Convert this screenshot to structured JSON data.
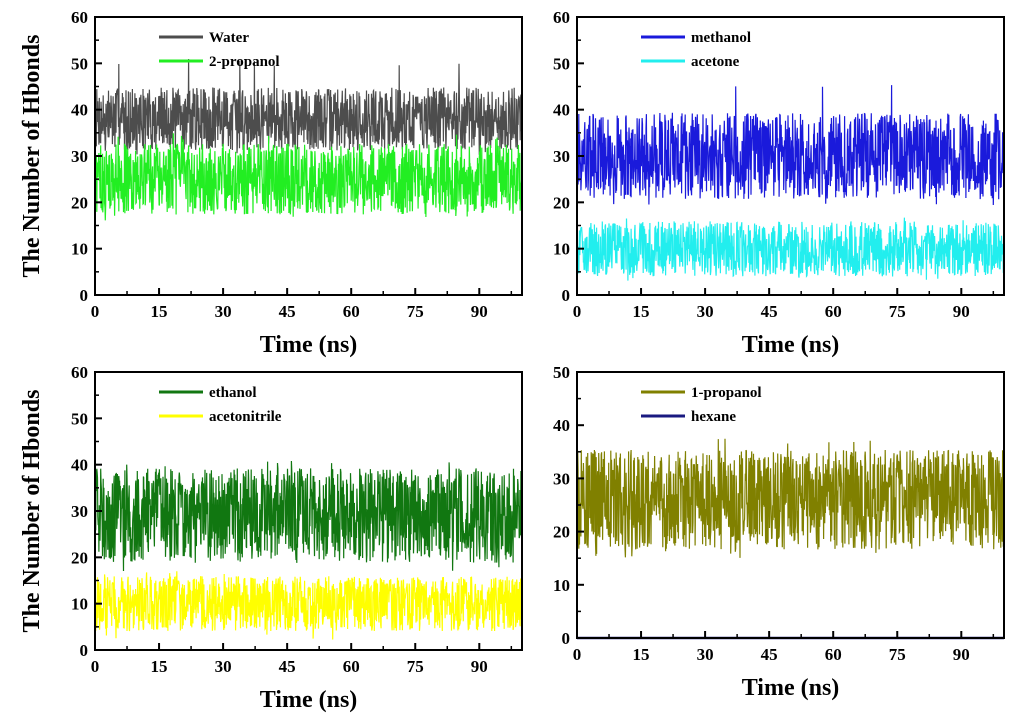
{
  "chart_data": [
    {
      "type": "line",
      "xlabel": "Time (ns)",
      "ylabel": "The Number of Hbonds",
      "xlim": [
        0,
        100
      ],
      "ylim": [
        0,
        60
      ],
      "xticks": [
        0,
        15,
        30,
        45,
        60,
        75,
        90
      ],
      "yticks": [
        0,
        10,
        20,
        30,
        40,
        50,
        60
      ],
      "legend_position": "top-left",
      "series": [
        {
          "name": "Water",
          "color": "#4d4d4d",
          "mean": 38,
          "range": [
            30,
            51
          ]
        },
        {
          "name": "2-propanol",
          "color": "#22ee22",
          "mean": 25,
          "range": [
            16,
            35
          ]
        }
      ]
    },
    {
      "type": "line",
      "xlabel": "Time (ns)",
      "ylabel": "",
      "xlim": [
        0,
        100
      ],
      "ylim": [
        0,
        60
      ],
      "xticks": [
        0,
        15,
        30,
        45,
        60,
        75,
        90
      ],
      "yticks": [
        0,
        10,
        20,
        30,
        40,
        50,
        60
      ],
      "legend_position": "top-left",
      "series": [
        {
          "name": "methanol",
          "color": "#1a1adb",
          "mean": 30,
          "range": [
            19,
            46
          ]
        },
        {
          "name": "acetone",
          "color": "#22eeee",
          "mean": 10,
          "range": [
            3,
            17
          ]
        }
      ]
    },
    {
      "type": "line",
      "xlabel": "Time (ns)",
      "ylabel": "The Number of Hbonds",
      "xlim": [
        0,
        100
      ],
      "ylim": [
        0,
        60
      ],
      "xticks": [
        0,
        15,
        30,
        45,
        60,
        75,
        90
      ],
      "yticks": [
        0,
        10,
        20,
        30,
        40,
        50,
        60
      ],
      "legend_position": "top-left",
      "series": [
        {
          "name": "ethanol",
          "color": "#117711",
          "mean": 29,
          "range": [
            17,
            41
          ]
        },
        {
          "name": "acetonitrile",
          "color": "#ffff00",
          "mean": 10,
          "range": [
            2,
            17
          ]
        }
      ]
    },
    {
      "type": "line",
      "xlabel": "Time (ns)",
      "ylabel": "",
      "xlim": [
        0,
        100
      ],
      "ylim": [
        0,
        50
      ],
      "xticks": [
        0,
        15,
        30,
        45,
        60,
        75,
        90
      ],
      "yticks": [
        0,
        10,
        20,
        30,
        40,
        50
      ],
      "legend_position": "top-left",
      "series": [
        {
          "name": "1-propanol",
          "color": "#808000",
          "mean": 26,
          "range": [
            15,
            38
          ]
        },
        {
          "name": "hexane",
          "color": "#1a1a80",
          "mean": 0,
          "range": [
            0,
            0
          ]
        }
      ]
    }
  ]
}
